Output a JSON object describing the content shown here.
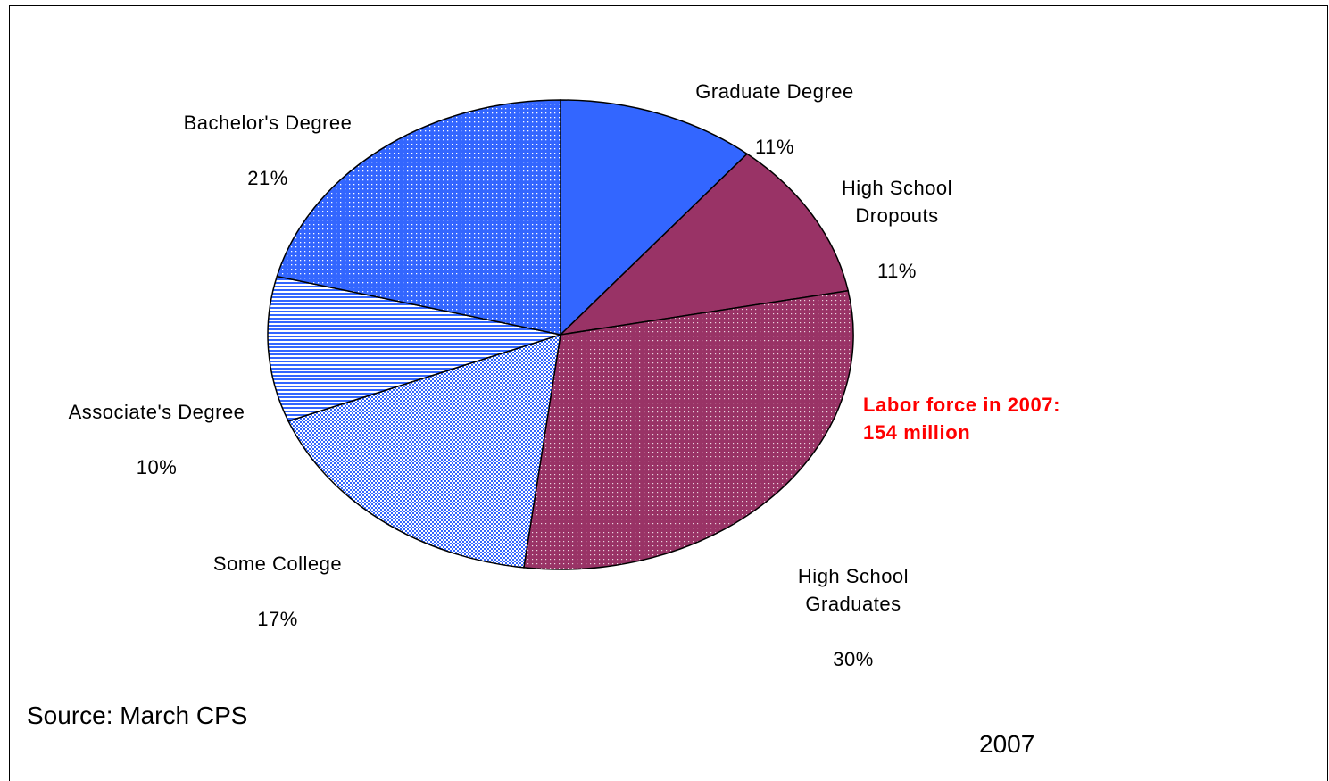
{
  "chart_data": {
    "type": "pie",
    "categories": [
      "Graduate Degree",
      "High School Dropouts",
      "High School Graduates",
      "Some College",
      "Associate's Degree",
      "Bachelor's Degree"
    ],
    "values": [
      11,
      11,
      30,
      17,
      10,
      21
    ],
    "labels": [
      {
        "name": "Graduate Degree",
        "pct": "11%"
      },
      {
        "name": "High School\nDropouts",
        "pct": "11%"
      },
      {
        "name": "High School\nGraduates",
        "pct": "30%"
      },
      {
        "name": "Some College",
        "pct": "17%"
      },
      {
        "name": "Associate's Degree",
        "pct": "10%"
      },
      {
        "name": "Bachelor's Degree",
        "pct": "21%"
      }
    ],
    "colors": [
      "#3366ff",
      "#993366",
      "#993366",
      "#3366ff",
      "#3366ff",
      "#3366ff"
    ],
    "patterns": [
      "solid",
      "solid",
      "dots",
      "checker",
      "horizontal-lines",
      "dots"
    ]
  },
  "annotation": {
    "line1": "Labor force in 2007:",
    "line2": "154 million",
    "color": "#ff0000"
  },
  "source": "Source: March CPS",
  "year": "2007"
}
